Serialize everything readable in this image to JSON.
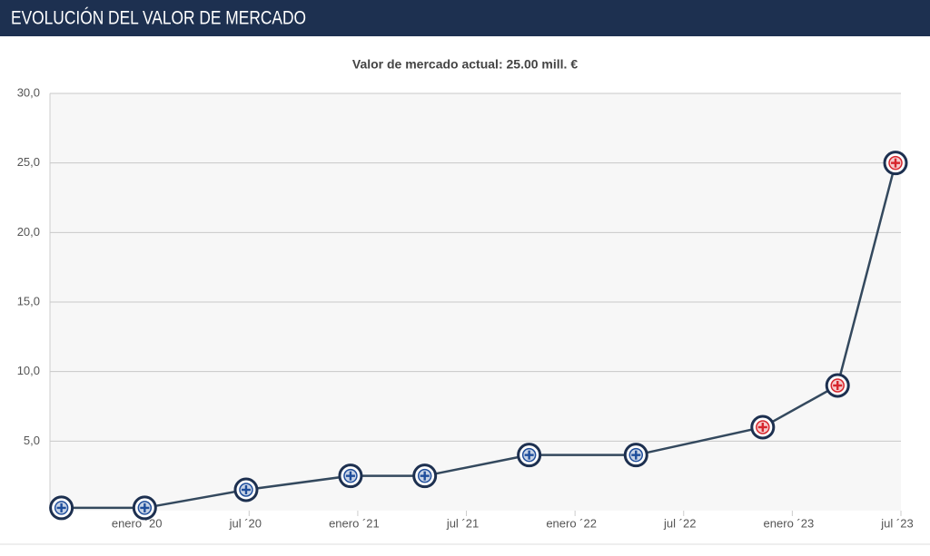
{
  "chart_data": {
    "type": "line",
    "title": "EVOLUCIÓN DEL VALOR DE MERCADO",
    "subtitle": "Valor de mercado actual: 25.00 mill. €",
    "x": [
      "2019-08-20",
      "2020-01-08",
      "2020-06-26",
      "2020-12-19",
      "2021-04-22",
      "2021-10-15",
      "2022-04-12",
      "2022-11-12",
      "2023-03-16",
      "2023-06-22"
    ],
    "series": [
      {
        "color": "#34495e",
        "values": [
          0.2,
          0.2,
          1.5,
          2.5,
          2.5,
          4,
          4,
          6,
          9,
          25
        ],
        "marker_colors": [
          "#1f4e9c",
          "#1f4e9c",
          "#1f4e9c",
          "#1f4e9c",
          "#1f4e9c",
          "#1f4e9c",
          "#1f4e9c",
          "#d7262d",
          "#d7262d",
          "#d7262d"
        ]
      }
    ],
    "ylim": [
      0,
      30
    ],
    "yticks": [
      {
        "value": 5,
        "label": "5,0"
      },
      {
        "value": 10,
        "label": "10,0"
      },
      {
        "value": 15,
        "label": "15,0"
      },
      {
        "value": 20,
        "label": "20,0"
      },
      {
        "value": 25,
        "label": "25,0"
      },
      {
        "value": 30,
        "label": "30,0"
      }
    ],
    "xlim": [
      "2019-08-01",
      "2023-07-01"
    ],
    "xticks": [
      {
        "value": "2020-01-01",
        "label": "enero ´20"
      },
      {
        "value": "2020-07-01",
        "label": "jul ´20"
      },
      {
        "value": "2021-01-01",
        "label": "enero ´21"
      },
      {
        "value": "2021-07-01",
        "label": "jul ´21"
      },
      {
        "value": "2022-01-01",
        "label": "enero ´22"
      },
      {
        "value": "2022-07-01",
        "label": "jul ´22"
      },
      {
        "value": "2023-01-01",
        "label": "enero ´23"
      },
      {
        "value": "2023-07-01",
        "label": "jul ´23"
      }
    ],
    "grid": true
  }
}
